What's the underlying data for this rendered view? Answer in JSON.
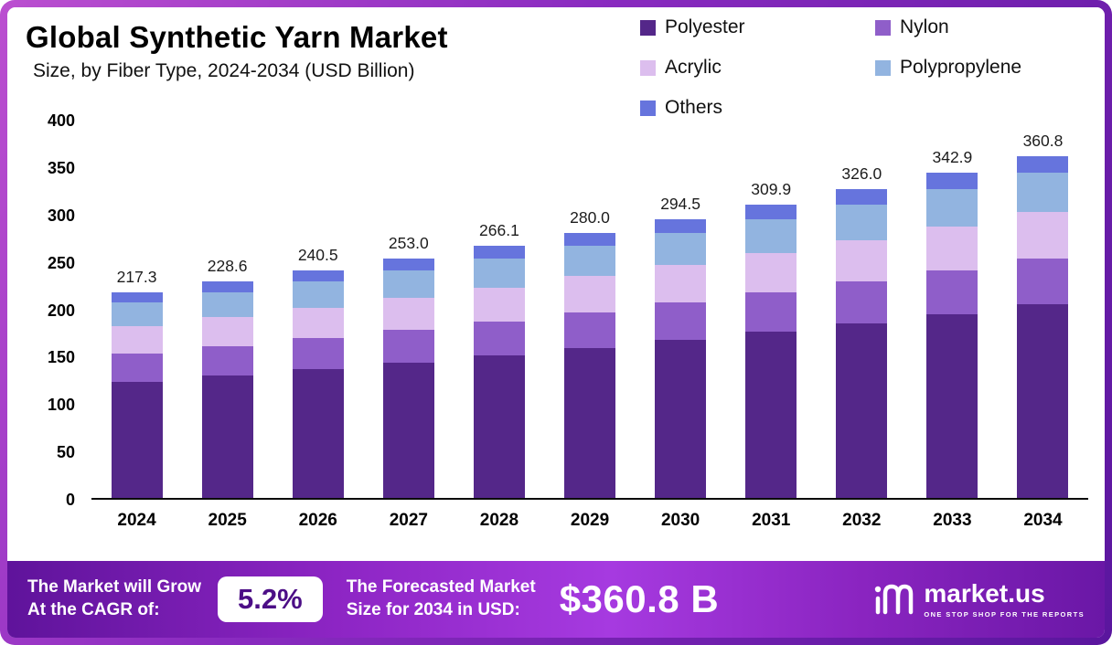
{
  "header": {
    "title": "Global Synthetic Yarn Market",
    "subtitle": "Size, by Fiber Type, 2024-2034 (USD Billion)"
  },
  "legend": [
    {
      "label": "Polyester",
      "color": "#542789"
    },
    {
      "label": "Nylon",
      "color": "#8f5ec9"
    },
    {
      "label": "Acrylic",
      "color": "#dcbeee"
    },
    {
      "label": "Polypropylene",
      "color": "#92b4e0"
    },
    {
      "label": "Others",
      "color": "#6674dd"
    }
  ],
  "chart_data": {
    "type": "bar",
    "stacked": true,
    "title": "Global Synthetic Yarn Market Size, by Fiber Type, 2024-2034 (USD Billion)",
    "xlabel": "",
    "ylabel": "USD Billion",
    "ylim": [
      0,
      400
    ],
    "yticks": [
      0,
      50,
      100,
      150,
      200,
      250,
      300,
      350,
      400
    ],
    "grid": false,
    "legend_position": "top-right",
    "categories": [
      "2024",
      "2025",
      "2026",
      "2027",
      "2028",
      "2029",
      "2030",
      "2031",
      "2032",
      "2033",
      "2034"
    ],
    "totals": [
      217.3,
      228.6,
      240.5,
      253.0,
      266.1,
      280.0,
      294.5,
      309.9,
      326.0,
      342.9,
      360.8
    ],
    "series": [
      {
        "name": "Polyester",
        "color": "#542789",
        "values": [
          122.8,
          129.2,
          135.9,
          143.0,
          150.3,
          158.2,
          166.4,
          175.1,
          184.2,
          193.7,
          203.9
        ]
      },
      {
        "name": "Nylon",
        "color": "#8f5ec9",
        "values": [
          29.3,
          30.9,
          32.5,
          34.2,
          35.9,
          37.8,
          39.8,
          41.8,
          44.0,
          46.3,
          48.7
        ]
      },
      {
        "name": "Acrylic",
        "color": "#dcbeee",
        "values": [
          29.3,
          30.9,
          32.5,
          34.2,
          35.9,
          37.8,
          39.8,
          41.8,
          44.0,
          46.3,
          48.7
        ]
      },
      {
        "name": "Polypropylene",
        "color": "#92b4e0",
        "values": [
          25.0,
          26.3,
          27.7,
          29.1,
          30.6,
          32.2,
          33.9,
          35.6,
          37.5,
          39.4,
          41.5
        ]
      },
      {
        "name": "Others",
        "color": "#6674dd",
        "values": [
          10.9,
          11.3,
          11.9,
          12.5,
          13.4,
          14.0,
          14.6,
          15.6,
          16.3,
          17.2,
          18.0
        ]
      }
    ]
  },
  "footer": {
    "cagr_label_line1": "The Market will Grow",
    "cagr_label_line2": "At the CAGR of:",
    "cagr_value": "5.2%",
    "forecast_label_line1": "The Forecasted Market",
    "forecast_label_line2": "Size for 2034 in USD:",
    "forecast_value": "$360.8 B",
    "brand": "market.us",
    "brand_tagline": "ONE STOP SHOP FOR THE REPORTS"
  }
}
